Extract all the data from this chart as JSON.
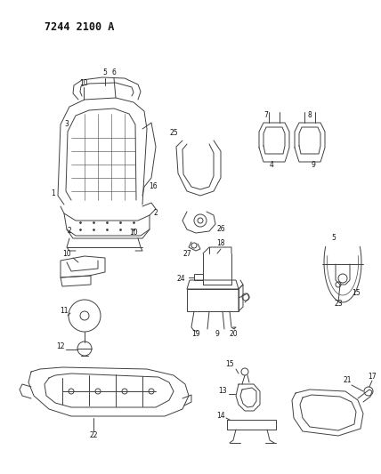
{
  "title": "7244 2100 A",
  "bg_color": "#f5f5f5",
  "line_color": "#404040",
  "text_color": "#111111",
  "figsize": [
    4.28,
    5.33
  ],
  "dpi": 100
}
